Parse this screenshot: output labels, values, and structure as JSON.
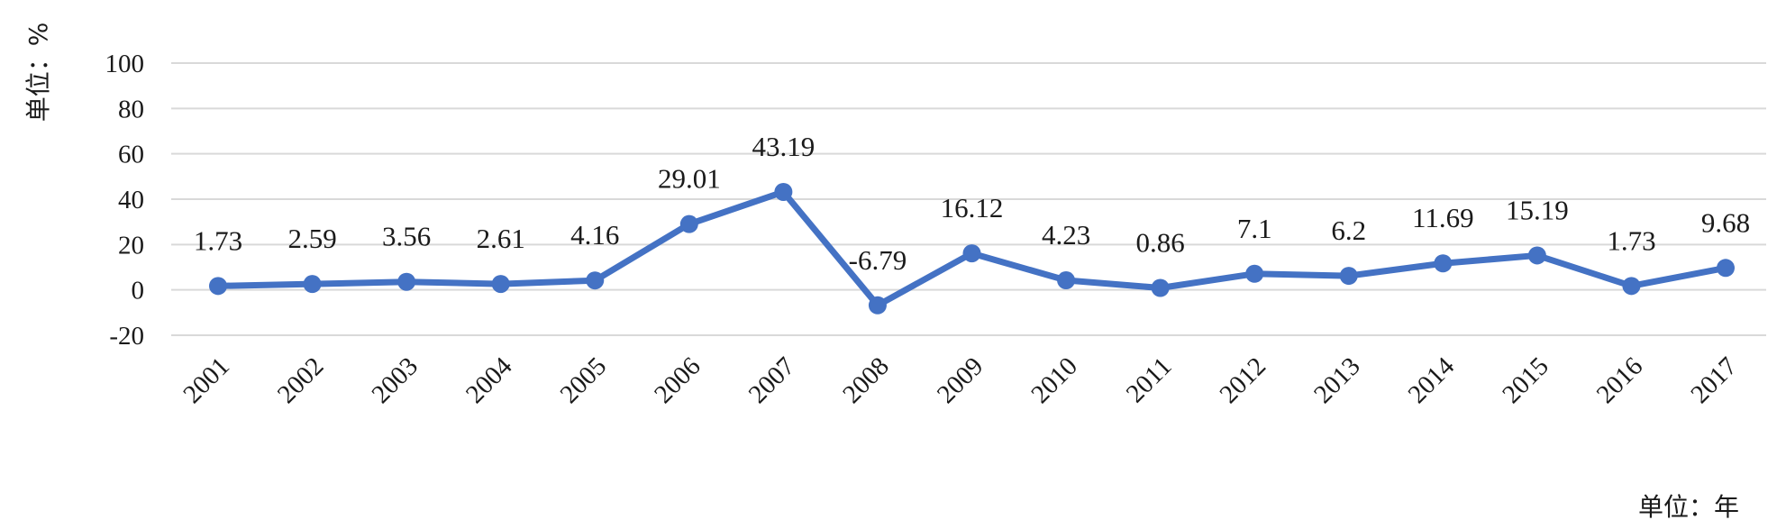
{
  "chart_data": {
    "type": "line",
    "title": "",
    "xlabel": "单位：年",
    "ylabel": "单位：%",
    "ylim": [
      -20,
      100
    ],
    "yticks": [
      -20,
      0,
      20,
      40,
      60,
      80,
      100
    ],
    "grid": true,
    "legend": "none",
    "colors": {
      "series": "#4472C4",
      "grid": "#d9d9d9"
    },
    "categories": [
      "2001",
      "2002",
      "2003",
      "2004",
      "2005",
      "2006",
      "2007",
      "2008",
      "2009",
      "2010",
      "2011",
      "2012",
      "2013",
      "2014",
      "2015",
      "2016",
      "2017"
    ],
    "series": [
      {
        "values": [
          1.73,
          2.59,
          3.56,
          2.61,
          4.16,
          29.01,
          43.19,
          -6.79,
          16.12,
          4.23,
          0.86,
          7.1,
          6.2,
          11.69,
          15.19,
          1.73,
          9.68
        ],
        "labels": [
          "1.73",
          "2.59",
          "3.56",
          "2.61",
          "4.16",
          "29.01",
          "43.19",
          "-6.79",
          "16.12",
          "4.23",
          "0.86",
          "7.1",
          "6.2",
          "11.69",
          "15.19",
          "1.73",
          "9.68"
        ]
      }
    ]
  }
}
